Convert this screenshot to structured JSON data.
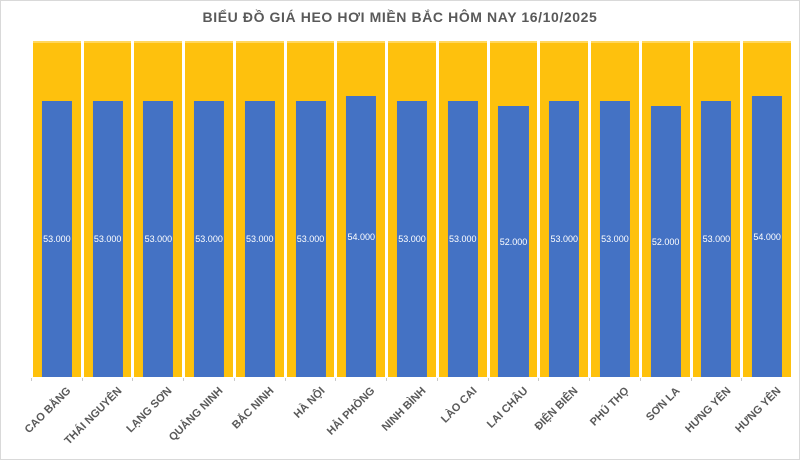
{
  "title": "BIỂU ĐỒ GIÁ HEO HƠI MIỀN BẮC HÔM NAY 16/10/2025",
  "chart_data": {
    "type": "bar",
    "title": "BIỂU ĐỒ GIÁ HEO HƠI MIỀN BẮC HÔM NAY 16/10/2025",
    "categories": [
      "CAO BẰNG",
      "THÁI NGUYÊN",
      "LẠNG SƠN",
      "QUẢNG NINH",
      "BẮC NINH",
      "HÀ NỘI",
      "HẢI PHÒNG",
      "NINH BÌNH",
      "LÀO CAI",
      "LAI CHÂU",
      "ĐIỆN BIÊN",
      "PHÚ THỌ",
      "SƠN LA",
      "HƯNG YÊN",
      "HƯNG YÊN"
    ],
    "values": [
      53000,
      53000,
      53000,
      53000,
      53000,
      53000,
      54000,
      53000,
      53000,
      52000,
      53000,
      53000,
      52000,
      53000,
      54000
    ],
    "value_labels": [
      "53.000",
      "53.000",
      "53.000",
      "53.000",
      "53.000",
      "53.000",
      "54.000",
      "53.000",
      "53.000",
      "52.000",
      "53.000",
      "53.000",
      "52.000",
      "53.000",
      "54.000"
    ],
    "xlabel": "",
    "ylabel": "",
    "ylim": [
      0,
      64500
    ],
    "grid": false,
    "legend": "none",
    "background_columns_full_height": true,
    "data_label_position": "inside-center",
    "x_label_rotation_deg": -45
  },
  "colors": {
    "bar_fill": "#4472C4",
    "column_bg": "#FEC10D",
    "column_bg_highlight": "#FFD75E",
    "title_text": "#595959",
    "axis_label_text": "#595959",
    "value_label_text": "#FFFFFF",
    "canvas_bg": "#FFFFFF",
    "canvas_border": "#D9D9D9"
  }
}
